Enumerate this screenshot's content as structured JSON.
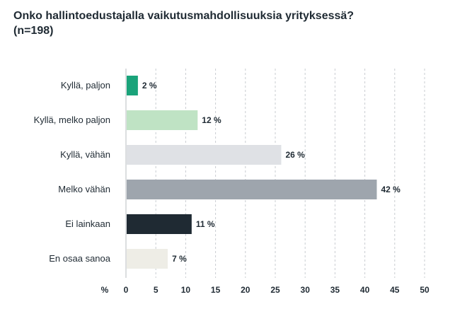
{
  "chart_data": {
    "type": "bar",
    "orientation": "horizontal",
    "title": "Onko hallintoedustajalla vaikutusmahdollisuuksia yrityksessä?",
    "subtitle": "(n=198)",
    "categories": [
      "Kyllä, paljon",
      "Kyllä, melko paljon",
      "Kyllä, vähän",
      "Melko vähän",
      "Ei lainkaan",
      "En osaa sanoa"
    ],
    "values": [
      2,
      12,
      26,
      42,
      11,
      7
    ],
    "value_labels": [
      "2 %",
      "12 %",
      "26 %",
      "42 %",
      "11 %",
      "7 %"
    ],
    "colors": [
      "#1aa37a",
      "#bfe3c4",
      "#dfe1e5",
      "#9ea5ad",
      "#1f2a33",
      "#eeede6"
    ],
    "xlabel": "%",
    "ylabel": "",
    "xlim": [
      0,
      50
    ],
    "xticks": [
      0,
      5,
      10,
      15,
      20,
      25,
      30,
      35,
      40,
      45,
      50
    ],
    "grid": "vertical dashed"
  }
}
